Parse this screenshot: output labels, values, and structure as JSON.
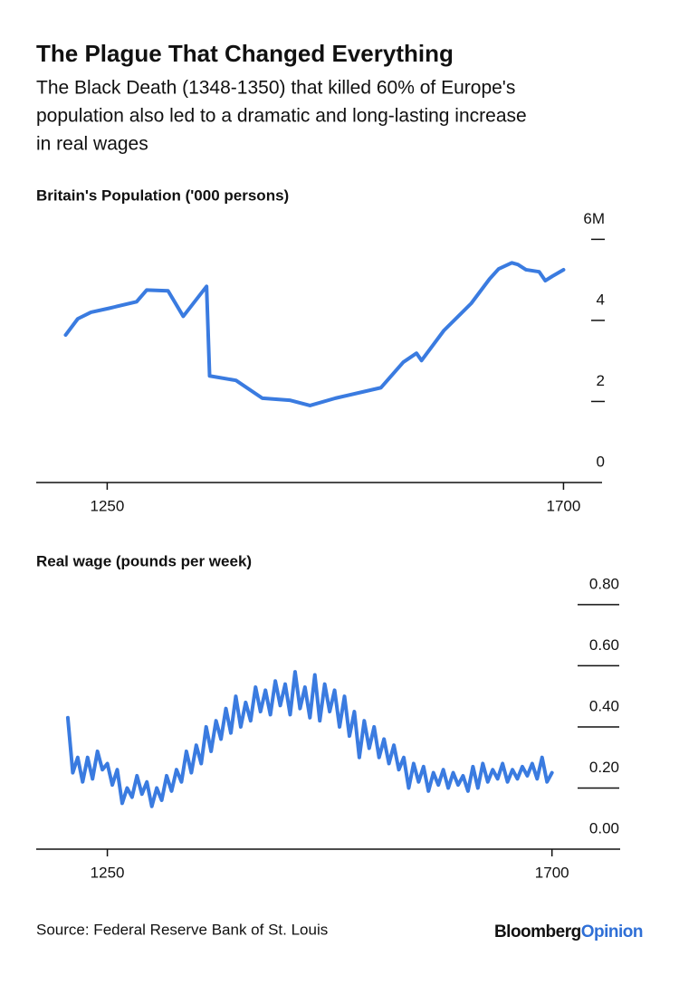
{
  "header": {
    "title": "The Plague That Changed Everything",
    "subtitle": [
      "The Black Death (1348-1350) that killed 60% of Europe's",
      "population also led to a dramatic and long-lasting increase",
      "in real wages"
    ]
  },
  "chart_data": [
    {
      "type": "line",
      "title": "Britain's Population ('000 persons)",
      "color": "#3a7be0",
      "x": [
        1209,
        1221,
        1234,
        1252,
        1279,
        1289,
        1310,
        1325,
        1348,
        1351,
        1377,
        1403,
        1430,
        1450,
        1475,
        1520,
        1542,
        1555,
        1560,
        1582,
        1609,
        1627,
        1636,
        1649,
        1655,
        1663,
        1676,
        1682,
        1689,
        1700
      ],
      "values": [
        3.64,
        4.04,
        4.2,
        4.3,
        4.46,
        4.75,
        4.73,
        4.1,
        4.84,
        2.63,
        2.52,
        2.08,
        2.03,
        1.9,
        2.08,
        2.34,
        2.97,
        3.19,
        3.01,
        3.75,
        4.42,
        5.02,
        5.27,
        5.42,
        5.38,
        5.25,
        5.2,
        4.98,
        5.09,
        5.25
      ],
      "xlim": [
        1180,
        1738
      ],
      "xticks": [
        1250,
        1700
      ],
      "ylim": [
        0,
        6.5
      ],
      "yticks": [
        0,
        2,
        4,
        {
          "value": 6,
          "label": "6M"
        }
      ]
    },
    {
      "type": "line",
      "title": "Real wage (pounds per week)",
      "color": "#3a7be0",
      "x": [
        1210,
        1215,
        1220,
        1225,
        1230,
        1235,
        1240,
        1245,
        1250,
        1255,
        1260,
        1265,
        1270,
        1275,
        1280,
        1285,
        1290,
        1295,
        1300,
        1305,
        1310,
        1315,
        1320,
        1325,
        1330,
        1335,
        1340,
        1345,
        1350,
        1355,
        1360,
        1365,
        1370,
        1375,
        1380,
        1385,
        1390,
        1395,
        1400,
        1405,
        1410,
        1415,
        1420,
        1425,
        1430,
        1435,
        1440,
        1445,
        1450,
        1455,
        1460,
        1465,
        1470,
        1475,
        1480,
        1485,
        1490,
        1495,
        1500,
        1505,
        1510,
        1515,
        1520,
        1525,
        1530,
        1535,
        1540,
        1545,
        1550,
        1555,
        1560,
        1565,
        1570,
        1575,
        1580,
        1585,
        1590,
        1595,
        1600,
        1605,
        1610,
        1615,
        1620,
        1625,
        1630,
        1635,
        1640,
        1645,
        1650,
        1655,
        1660,
        1665,
        1670,
        1675,
        1680,
        1685,
        1690,
        1695,
        1700
      ],
      "values": [
        0.43,
        0.25,
        0.3,
        0.22,
        0.3,
        0.23,
        0.32,
        0.26,
        0.28,
        0.21,
        0.26,
        0.15,
        0.2,
        0.17,
        0.24,
        0.18,
        0.22,
        0.14,
        0.2,
        0.16,
        0.24,
        0.19,
        0.26,
        0.22,
        0.32,
        0.25,
        0.34,
        0.28,
        0.4,
        0.32,
        0.42,
        0.36,
        0.46,
        0.38,
        0.5,
        0.4,
        0.48,
        0.42,
        0.53,
        0.45,
        0.52,
        0.44,
        0.55,
        0.47,
        0.54,
        0.44,
        0.58,
        0.46,
        0.53,
        0.43,
        0.57,
        0.42,
        0.54,
        0.45,
        0.52,
        0.4,
        0.5,
        0.37,
        0.45,
        0.3,
        0.42,
        0.33,
        0.4,
        0.3,
        0.36,
        0.28,
        0.34,
        0.26,
        0.3,
        0.2,
        0.28,
        0.22,
        0.27,
        0.19,
        0.25,
        0.21,
        0.26,
        0.2,
        0.25,
        0.21,
        0.24,
        0.19,
        0.27,
        0.2,
        0.28,
        0.22,
        0.26,
        0.23,
        0.28,
        0.22,
        0.26,
        0.23,
        0.27,
        0.24,
        0.28,
        0.23,
        0.3,
        0.22,
        0.25
      ],
      "xlim": [
        1178,
        1769
      ],
      "xticks": [
        1250,
        1700
      ],
      "ylim": [
        0,
        0.85
      ],
      "yticks": [
        {
          "value": 0,
          "label": "0.00"
        },
        {
          "value": 0.2,
          "label": "0.20"
        },
        {
          "value": 0.4,
          "label": "0.40"
        },
        {
          "value": 0.6,
          "label": "0.60"
        },
        {
          "value": 0.8,
          "label": "0.80"
        }
      ]
    }
  ],
  "footer": {
    "source": "Source: Federal Reserve Bank of St. Louis",
    "brand": [
      "Bloomberg",
      "Opinion"
    ]
  }
}
